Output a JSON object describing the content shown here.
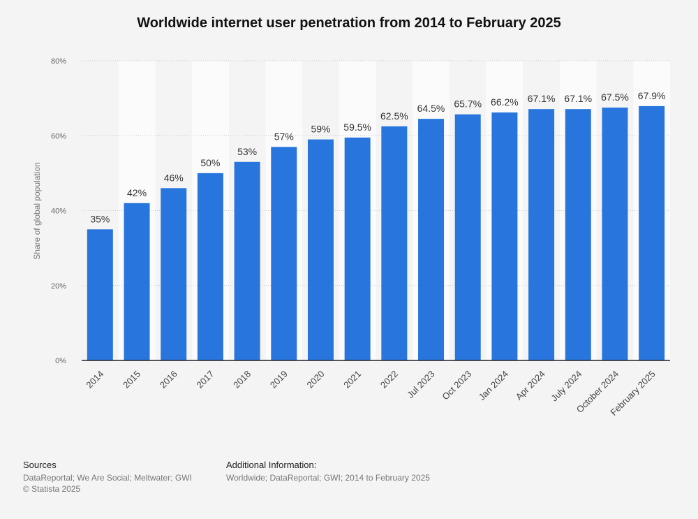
{
  "chart_data": {
    "type": "bar",
    "title": "Worldwide internet user penetration from 2014 to February 2025",
    "xlabel": "",
    "ylabel": "Share of global population",
    "ylim": [
      0,
      80
    ],
    "yticks": [
      0,
      20,
      40,
      60,
      80
    ],
    "ytick_labels": [
      "0%",
      "20%",
      "40%",
      "60%",
      "80%"
    ],
    "grid": true,
    "legend": "none",
    "categories": [
      "2014",
      "2015",
      "2016",
      "2017",
      "2018",
      "2019",
      "2020",
      "2021",
      "2022",
      "Jul 2023",
      "Oct 2023",
      "Jan 2024",
      "Apr 2024",
      "July 2024",
      "October 2024",
      "February 2025"
    ],
    "values": [
      35,
      42,
      46,
      50,
      53,
      57,
      59,
      59.5,
      62.5,
      64.5,
      65.7,
      66.2,
      67.1,
      67.1,
      67.5,
      67.9
    ],
    "value_labels": [
      "35%",
      "42%",
      "46%",
      "50%",
      "53%",
      "57%",
      "59%",
      "59.5%",
      "62.5%",
      "64.5%",
      "65.7%",
      "66.2%",
      "67.1%",
      "67.1%",
      "67.5%",
      "67.9%"
    ],
    "bar_color": "#2876dd"
  },
  "footer": {
    "sources_heading": "Sources",
    "sources_text": "DataReportal; We Are Social; Meltwater; GWI",
    "copyright": "© Statista 2025",
    "additional_heading": "Additional Information:",
    "additional_text": "Worldwide; DataReportal; GWI; 2014 to February 2025"
  }
}
